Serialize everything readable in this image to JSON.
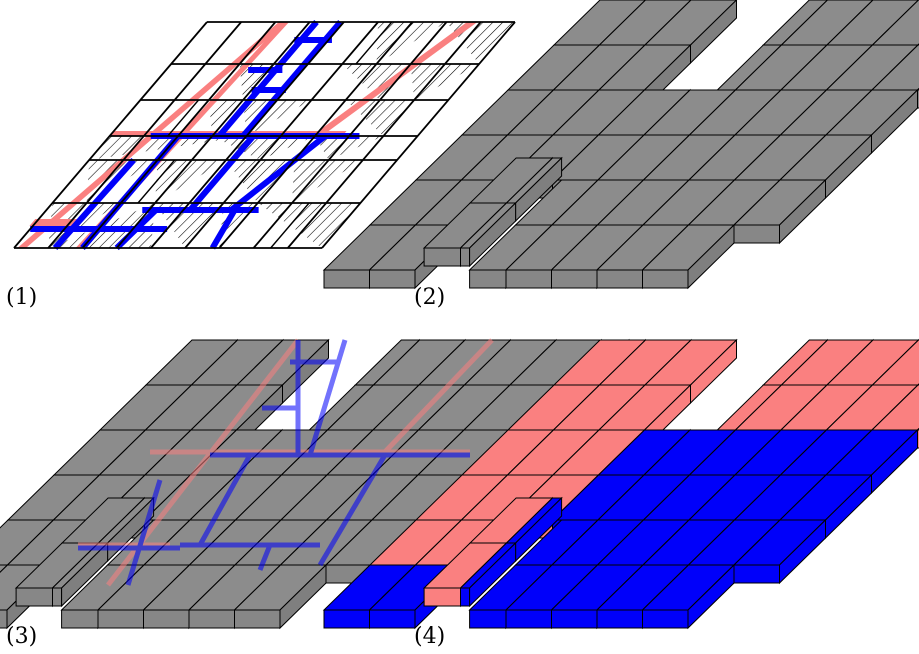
{
  "panels": [
    {
      "label": "(1)"
    },
    {
      "label": "(2)"
    },
    {
      "label": "(3)"
    },
    {
      "label": "(4)"
    }
  ],
  "colors": {
    "gray_block_top": "#8c8c8c",
    "gray_block_front": "#878787",
    "gray_block_side": "#7f7f7f",
    "red": "#fa8080",
    "blue": "#0000fa",
    "outline": "#000000"
  },
  "parts": {
    "red_region_note": "",
    "blue_region_note": ""
  }
}
